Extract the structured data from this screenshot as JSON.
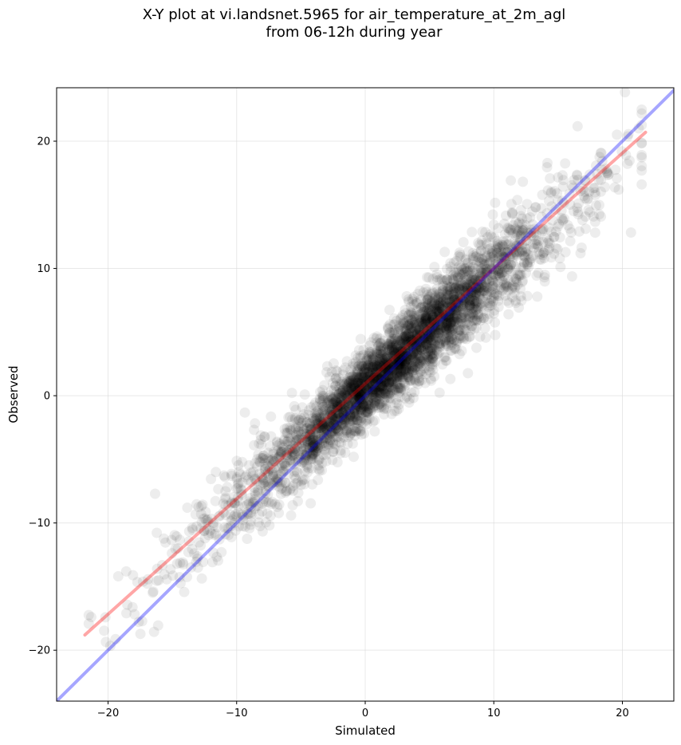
{
  "chart_data": {
    "type": "scatter",
    "title": "X-Y plot at vi.landsnet.5965 for air_temperature_at_2m_agl",
    "subtitle": "from 06-12h during year",
    "xlabel": "Simulated",
    "ylabel": "Observed",
    "xlim": [
      -24,
      24
    ],
    "ylim": [
      -24,
      24.2
    ],
    "xticks": [
      -20,
      -10,
      0,
      10,
      20
    ],
    "yticks": [
      -20,
      -10,
      0,
      10,
      20
    ],
    "xtick_labels": [
      "−20",
      "−10",
      "0",
      "10",
      "20"
    ],
    "ytick_labels": [
      "−20",
      "−10",
      "0",
      "10",
      "20"
    ],
    "grid": true,
    "point_color": "#000000",
    "point_opacity": 0.07,
    "approx_point_count": 3800,
    "point_cloud": {
      "x_range": [
        -21.5,
        21.5
      ],
      "center_relation": "observed ≈ 0.9 × simulated + 0.6",
      "dense_region_x": [
        -8,
        14
      ]
    },
    "lines": [
      {
        "name": "regression",
        "color": "#ff0000",
        "opacity": 0.35,
        "x": [
          -21.8,
          21.8
        ],
        "y": [
          -18.8,
          20.7
        ]
      },
      {
        "name": "1:1",
        "color": "#0000ff",
        "opacity": 0.35,
        "x": [
          -24,
          24.2
        ],
        "y": [
          -24,
          24.2
        ]
      }
    ]
  }
}
